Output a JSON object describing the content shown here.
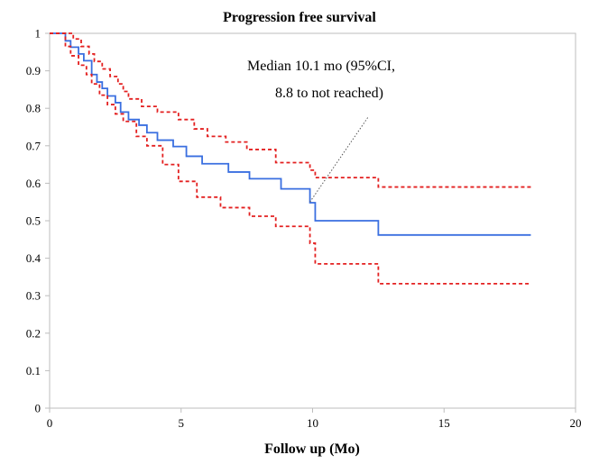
{
  "chart_data": {
    "type": "line",
    "title": "Progression free survival",
    "xlabel": "Follow up (Mo)",
    "ylabel": "",
    "xlim": [
      0,
      20
    ],
    "ylim": [
      0,
      1
    ],
    "xticks": [
      "0",
      "5",
      "10",
      "15",
      "20"
    ],
    "yticks": [
      "0",
      "0.1",
      "0.2",
      "0.3",
      "0.4",
      "0.5",
      "0.6",
      "0.7",
      "0.8",
      "0.9",
      "1"
    ],
    "grid": false,
    "legend": "none",
    "annotation": {
      "lines": [
        "Median 10.1 mo (95%CI,",
        "8.8 to not reached)"
      ],
      "points_to": [
        9.9,
        0.55
      ]
    },
    "series": [
      {
        "style": "solid",
        "color": "#3a6fe0",
        "step": true,
        "x": [
          0,
          0.6,
          0.8,
          1.1,
          1.3,
          1.6,
          1.8,
          2.0,
          2.2,
          2.5,
          2.7,
          3.0,
          3.4,
          3.7,
          4.1,
          4.7,
          5.2,
          5.8,
          6.8,
          7.6,
          8.8,
          9.9,
          10.1,
          12.5,
          18.3
        ],
        "y": [
          1.0,
          0.98,
          0.963,
          0.945,
          0.927,
          0.89,
          0.87,
          0.853,
          0.833,
          0.815,
          0.79,
          0.77,
          0.755,
          0.735,
          0.715,
          0.698,
          0.672,
          0.652,
          0.63,
          0.612,
          0.585,
          0.548,
          0.5,
          0.462,
          0.462
        ]
      },
      {
        "style": "dashed",
        "color": "#e32020",
        "step": true,
        "x": [
          0,
          0.9,
          1.2,
          1.5,
          1.7,
          2.0,
          2.3,
          2.6,
          2.8,
          3.0,
          3.5,
          4.1,
          4.9,
          5.5,
          6.0,
          6.7,
          7.5,
          8.6,
          9.9,
          10.1,
          12.5,
          18.3
        ],
        "y": [
          1.0,
          0.985,
          0.965,
          0.945,
          0.925,
          0.905,
          0.885,
          0.865,
          0.845,
          0.825,
          0.805,
          0.79,
          0.77,
          0.745,
          0.725,
          0.71,
          0.69,
          0.655,
          0.635,
          0.615,
          0.59,
          0.59
        ]
      },
      {
        "style": "dashed",
        "color": "#e32020",
        "step": true,
        "x": [
          0,
          0.6,
          0.8,
          1.1,
          1.4,
          1.6,
          1.9,
          2.2,
          2.5,
          2.8,
          3.3,
          3.7,
          4.3,
          4.9,
          5.6,
          6.5,
          7.6,
          8.6,
          9.9,
          10.1,
          12.5,
          18.3
        ],
        "y": [
          1.0,
          0.965,
          0.94,
          0.915,
          0.89,
          0.865,
          0.835,
          0.81,
          0.785,
          0.765,
          0.725,
          0.7,
          0.65,
          0.605,
          0.563,
          0.535,
          0.512,
          0.485,
          0.44,
          0.385,
          0.332,
          0.332
        ]
      }
    ]
  }
}
